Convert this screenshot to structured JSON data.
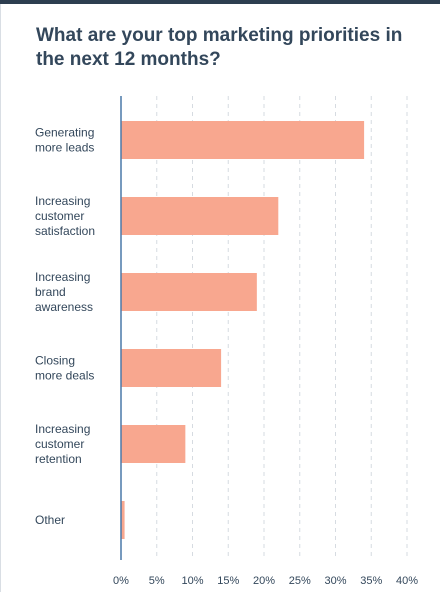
{
  "title": "What are your top marketing priorities in the next 12 months?",
  "colors": {
    "bar": "#f8a78f",
    "axis": "#4a78a8",
    "grid": "#d6dbe1",
    "text": "#33475b",
    "topbar": "#2d3e50"
  },
  "chart_data": {
    "type": "bar",
    "orientation": "horizontal",
    "title": "What are your top marketing priorities in the next 12 months?",
    "xlabel": "",
    "ylabel": "",
    "xlim": [
      0,
      40
    ],
    "grid": true,
    "categories": [
      [
        "Generating",
        "more leads"
      ],
      [
        "Increasing",
        "customer",
        "satisfaction"
      ],
      [
        "Increasing",
        "brand",
        "awareness"
      ],
      [
        "Closing",
        "more deals"
      ],
      [
        "Increasing",
        "customer",
        "retention"
      ],
      [
        "Other"
      ]
    ],
    "values": [
      34,
      22,
      19,
      14,
      9,
      0.5
    ],
    "ticks": [
      0,
      5,
      10,
      15,
      20,
      25,
      30,
      35,
      40
    ],
    "tick_labels": [
      "0%",
      "5%",
      "10%",
      "15%",
      "20%",
      "25%",
      "30%",
      "35%",
      "40%"
    ]
  }
}
